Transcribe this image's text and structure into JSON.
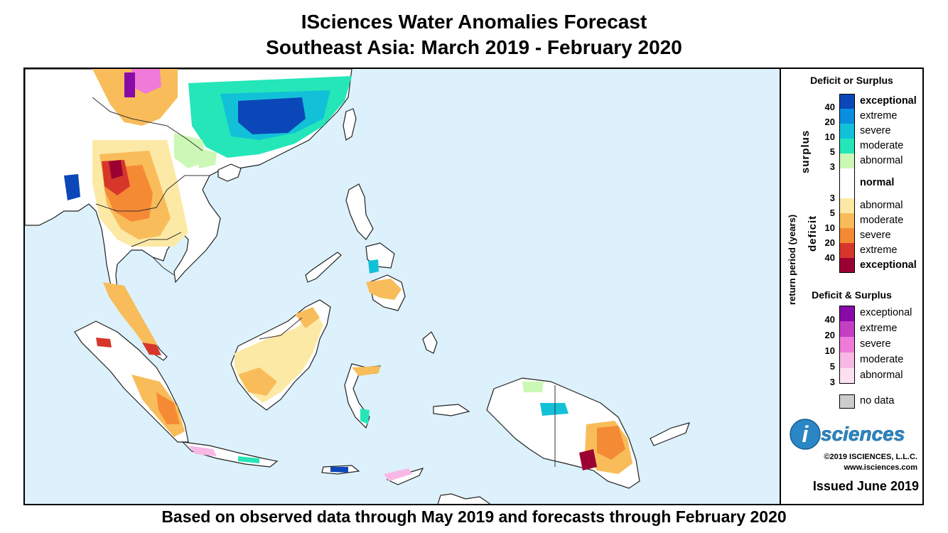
{
  "header": {
    "title_line1": "ISciences Water Anomalies Forecast",
    "title_line2": "Southeast Asia: March 2019 - February 2020"
  },
  "footer": {
    "text": "Based on observed data through May 2019 and forecasts through February 2020"
  },
  "legend": {
    "section1_title": "Deficit or Surplus",
    "axis_label": "return period (years)",
    "surplus_label": "surplus",
    "deficit_label": "deficit",
    "surplus_items": [
      {
        "label": "exceptional",
        "color": "#0b47b8",
        "tick": "40",
        "bold": true
      },
      {
        "label": "extreme",
        "color": "#0a8fe0",
        "tick": "20"
      },
      {
        "label": "severe",
        "color": "#12c1d8",
        "tick": "10"
      },
      {
        "label": "moderate",
        "color": "#25e6b8",
        "tick": "5"
      },
      {
        "label": "abnormal",
        "color": "#cbf8b5",
        "tick": "3"
      }
    ],
    "normal_label": "normal",
    "normal_color": "#ffffff",
    "deficit_items": [
      {
        "label": "abnormal",
        "color": "#fde9a6",
        "tick": "3"
      },
      {
        "label": "moderate",
        "color": "#f8bd5a",
        "tick": "5"
      },
      {
        "label": "severe",
        "color": "#f58a35",
        "tick": "10"
      },
      {
        "label": "extreme",
        "color": "#d6372a",
        "tick": "20"
      },
      {
        "label": "exceptional",
        "color": "#9b0033",
        "tick": "40",
        "bold": true
      }
    ],
    "section2_title": "Deficit & Surplus",
    "combo_items": [
      {
        "label": "exceptional",
        "color": "#8a0aa8",
        "tick": "40"
      },
      {
        "label": "extreme",
        "color": "#c43fc4",
        "tick": "20"
      },
      {
        "label": "severe",
        "color": "#f07ad9",
        "tick": "10"
      },
      {
        "label": "moderate",
        "color": "#f8b8e6",
        "tick": "5"
      },
      {
        "label": "abnormal",
        "color": "#fde0ef",
        "tick": "3"
      }
    ],
    "nodata_label": "no data",
    "nodata_color": "#cccccc",
    "logo_text": "sciences",
    "logo_letter": "i",
    "copyright": "©2019 ISCIENCES, L.L.C.",
    "website": "www.isciences.com",
    "issued": "Issued June 2019"
  },
  "map": {
    "ocean_color": "#dcf1fb",
    "land_color": "#ffffff"
  }
}
